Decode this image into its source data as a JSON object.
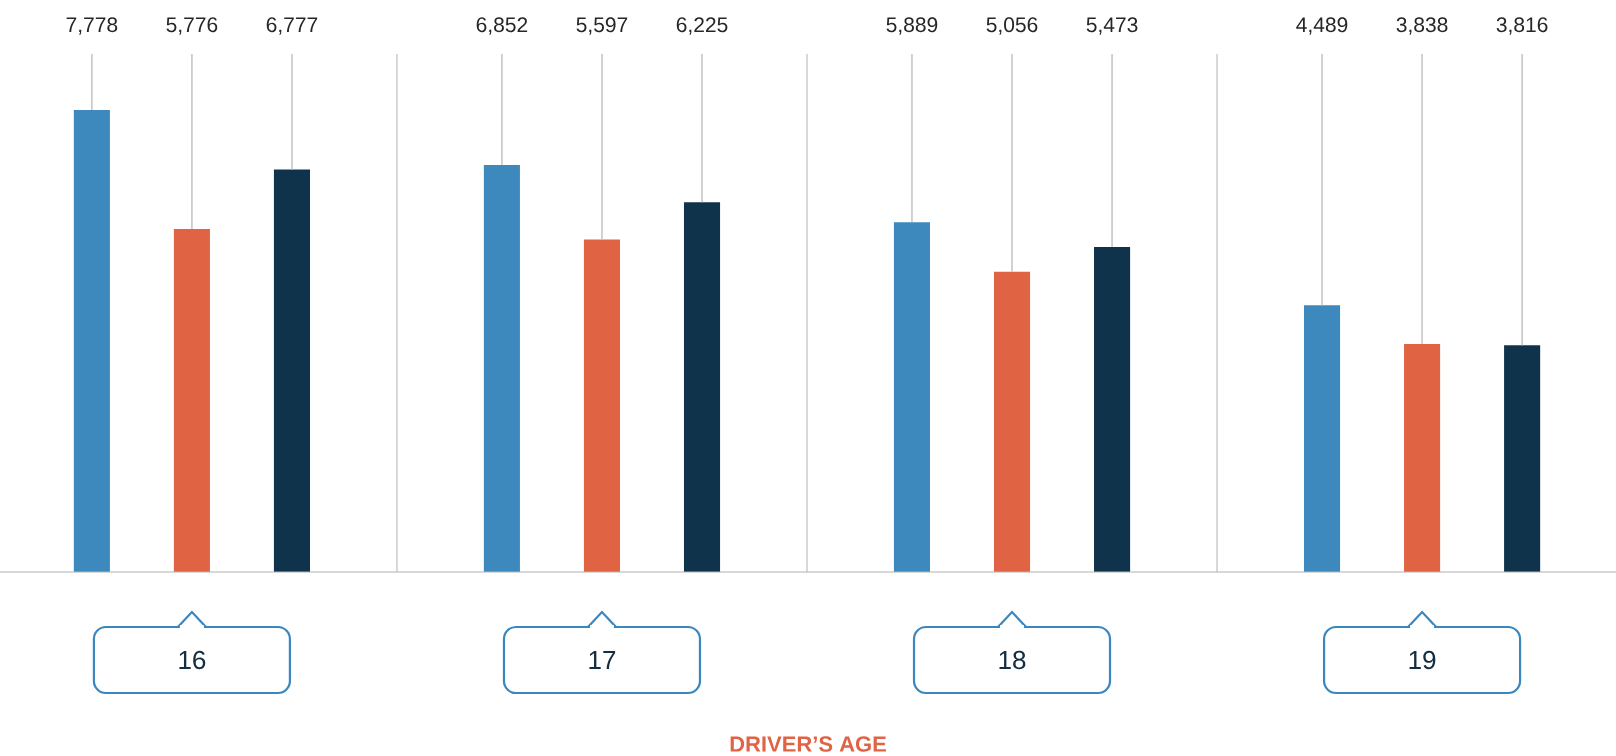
{
  "chart_data": {
    "type": "bar",
    "xlabel": "DRIVER’S AGE",
    "categories": [
      "16",
      "17",
      "18",
      "19"
    ],
    "series": [
      {
        "color": "#3d88bd",
        "values": [
          7778,
          6852,
          5889,
          4489
        ],
        "value_labels": [
          "7,778",
          "6,852",
          "5,889",
          "4,489"
        ]
      },
      {
        "color": "#e06444",
        "values": [
          5776,
          5597,
          5056,
          3838
        ],
        "value_labels": [
          "5,776",
          "5,597",
          "5,056",
          "3,838"
        ]
      },
      {
        "color": "#0f334b",
        "values": [
          6777,
          6225,
          5473,
          3816
        ],
        "value_labels": [
          "6,777",
          "6,225",
          "5,473",
          "3,816"
        ]
      }
    ]
  }
}
